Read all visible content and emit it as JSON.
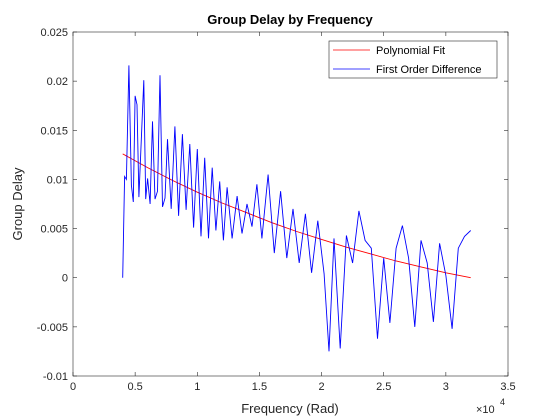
{
  "chart_data": {
    "type": "line",
    "title": "Group Delay by Frequency",
    "xlabel": "Frequency (Rad)",
    "ylabel": "Group Delay",
    "x_exponent_label": "×10",
    "x_exponent_power": "4",
    "xlim": [
      0,
      35000
    ],
    "ylim": [
      -0.01,
      0.025
    ],
    "x_ticks": [
      0,
      5000,
      10000,
      15000,
      20000,
      25000,
      30000,
      35000
    ],
    "x_tick_labels": [
      "0",
      "0.5",
      "1",
      "1.5",
      "2",
      "2.5",
      "3",
      "3.5"
    ],
    "y_ticks": [
      -0.01,
      -0.005,
      0,
      0.005,
      0.01,
      0.015,
      0.02,
      0.025
    ],
    "y_tick_labels": [
      "-0.01",
      "-0.005",
      "0",
      "0.005",
      "0.01",
      "0.015",
      "0.02",
      "0.025"
    ],
    "grid": false,
    "legend_position": "top-right",
    "series": [
      {
        "name": "Polynomial Fit",
        "color": "#ff0000",
        "x": [
          4000,
          6000,
          8000,
          10000,
          12000,
          14000,
          16000,
          18000,
          20000,
          22000,
          24000,
          26000,
          28000,
          30000,
          32000
        ],
        "y": [
          0.0126,
          0.0112,
          0.0099,
          0.0087,
          0.0076,
          0.0066,
          0.0056,
          0.0047,
          0.0039,
          0.0031,
          0.0024,
          0.0017,
          0.0011,
          0.0005,
          0.0
        ]
      },
      {
        "name": "First Order Difference",
        "color": "#0000ff",
        "x": [
          4000,
          4150,
          4300,
          4500,
          4700,
          4850,
          5000,
          5150,
          5300,
          5500,
          5700,
          5850,
          6000,
          6200,
          6400,
          6600,
          6800,
          7000,
          7200,
          7400,
          7600,
          7900,
          8200,
          8500,
          8800,
          9100,
          9400,
          9700,
          10000,
          10300,
          10600,
          10900,
          11200,
          11500,
          11800,
          12100,
          12400,
          12800,
          13200,
          13600,
          14000,
          14400,
          14800,
          15200,
          15700,
          16200,
          16700,
          17200,
          17700,
          18200,
          18700,
          19200,
          19700,
          20200,
          20600,
          21000,
          21500,
          22000,
          22500,
          23000,
          23500,
          24000,
          24500,
          25000,
          25500,
          26000,
          26500,
          27000,
          27500,
          28000,
          28500,
          29000,
          29500,
          30000,
          30500,
          31000,
          31500,
          32000
        ],
        "y": [
          0.0,
          0.0103,
          0.01,
          0.0216,
          0.0094,
          0.0077,
          0.0185,
          0.0176,
          0.0082,
          0.0143,
          0.0201,
          0.008,
          0.0101,
          0.0075,
          0.0159,
          0.008,
          0.0088,
          0.0206,
          0.0072,
          0.0081,
          0.0141,
          0.007,
          0.0154,
          0.0063,
          0.0146,
          0.0069,
          0.0136,
          0.0051,
          0.0131,
          0.0042,
          0.0122,
          0.004,
          0.0112,
          0.0048,
          0.0098,
          0.0038,
          0.0092,
          0.004,
          0.0083,
          0.0045,
          0.0075,
          0.0052,
          0.0095,
          0.004,
          0.0105,
          0.0025,
          0.0088,
          0.002,
          0.007,
          0.0015,
          0.0065,
          0.0005,
          0.0058,
          0.0004,
          -0.0075,
          0.004,
          -0.0072,
          0.0043,
          0.0015,
          0.0068,
          0.0038,
          0.003,
          -0.0062,
          0.002,
          -0.0046,
          0.003,
          0.0053,
          0.002,
          -0.005,
          0.0038,
          0.0015,
          -0.0045,
          0.0035,
          0.0002,
          -0.0052,
          0.003,
          0.0042,
          0.0048
        ]
      }
    ]
  }
}
